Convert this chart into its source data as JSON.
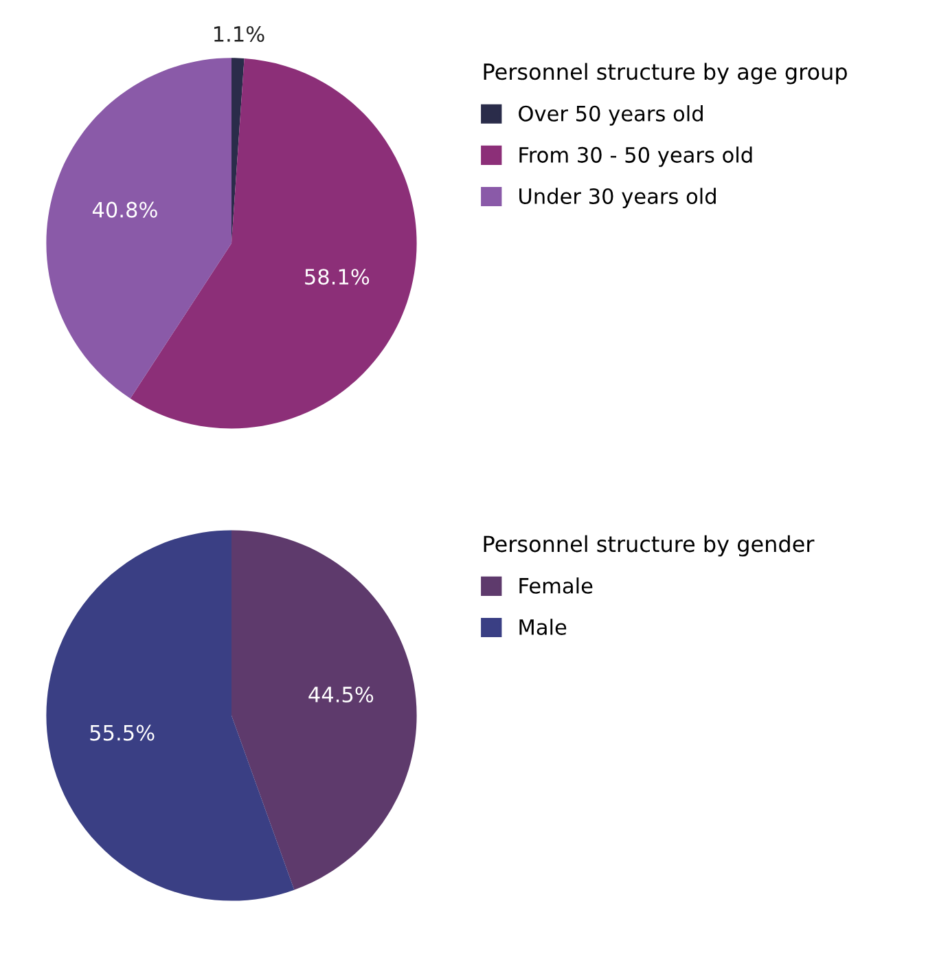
{
  "chart_data": [
    {
      "type": "pie",
      "legend_title": "Personnel structure by age group",
      "categories": [
        "Over 50 years old",
        "From 30 - 50 years old",
        "Under 30 years old"
      ],
      "values": [
        1.1,
        58.1,
        40.8
      ],
      "colors": [
        "#2a2c4a",
        "#8c2f78",
        "#8a5aa8"
      ],
      "value_labels": [
        "1.1%",
        "58.1%",
        "40.8%"
      ],
      "legend": "right"
    },
    {
      "type": "pie",
      "legend_title": "Personnel structure by gender",
      "categories": [
        "Female",
        "Male"
      ],
      "values": [
        44.5,
        55.5
      ],
      "colors": [
        "#5e3a6c",
        "#3a3f84"
      ],
      "value_labels": [
        "44.5%",
        "55.5%"
      ],
      "legend": "right"
    }
  ]
}
